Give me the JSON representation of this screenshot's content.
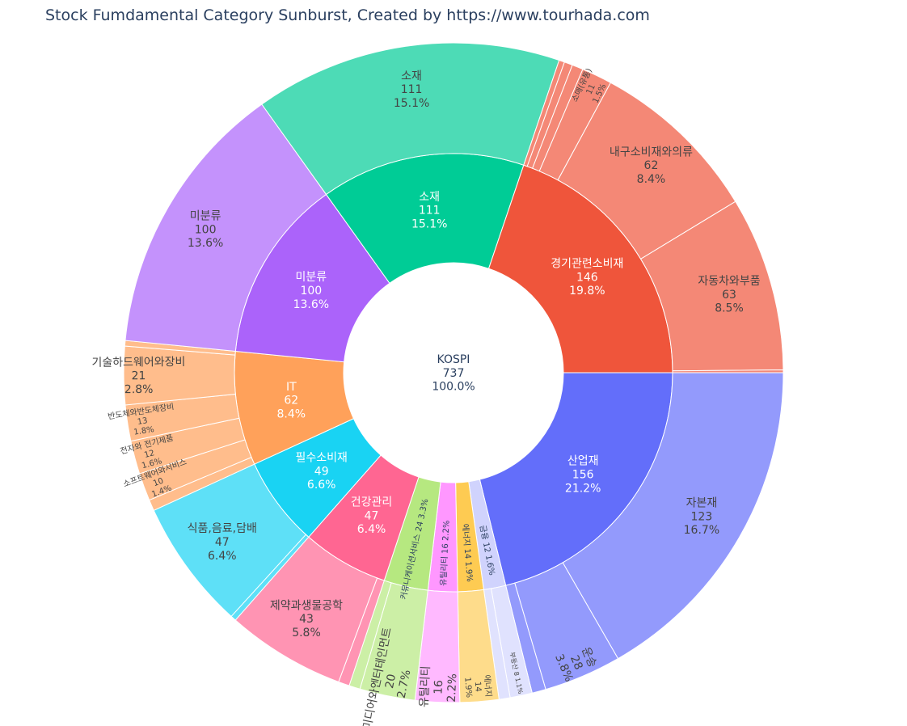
{
  "title": "Stock Fumdamental Category Sunburst, Created by https://www.tourhada.com",
  "chart_data": {
    "type": "sunburst",
    "title": "Stock Fumdamental Category Sunburst, Created by https://www.tourhada.com",
    "root": {
      "label": "KOSPI",
      "value": 737,
      "percent": "100.0%"
    },
    "sectors": [
      {
        "label": "산업재",
        "value": 156,
        "percent": "21.2%",
        "color": "#636efa",
        "children": [
          {
            "label": "자본재",
            "value": 123,
            "percent": "16.7%",
            "color": "#939afc"
          },
          {
            "label": "운송",
            "value": 28,
            "percent": "3.8%",
            "color": "#939afc"
          },
          {
            "label": "",
            "value": 5,
            "percent": "",
            "color": "#939afc"
          }
        ]
      },
      {
        "label": "금융",
        "value": 12,
        "percent": "1.6%",
        "color": "#d0d3fd",
        "children": [
          {
            "label": "부동산",
            "value": 8,
            "percent": "1.1%",
            "color": "#e0e2fe"
          },
          {
            "label": "",
            "value": 4,
            "percent": "",
            "color": "#e0e2fe"
          }
        ]
      },
      {
        "label": "에너지",
        "value": 14,
        "percent": "1.9%",
        "color": "#fecb52",
        "children": [
          {
            "label": "에너지",
            "value": 14,
            "percent": "1.9%",
            "color": "#fedc8b"
          }
        ]
      },
      {
        "label": "유틸리티",
        "value": 16,
        "percent": "2.2%",
        "color": "#ff97ff",
        "children": [
          {
            "label": "유틸리티",
            "value": 16,
            "percent": "2.2%",
            "color": "#ffb9ff"
          }
        ]
      },
      {
        "label": "커뮤니케이션서비스",
        "value": 24,
        "percent": "3.3%",
        "color": "#b6e880",
        "children": [
          {
            "label": "미디어와엔터테인먼트",
            "value": 20,
            "percent": "2.7%",
            "color": "#ccefa6"
          },
          {
            "label": "",
            "value": 4,
            "percent": "",
            "color": "#ccefa6"
          }
        ]
      },
      {
        "label": "건강관리",
        "value": 47,
        "percent": "6.4%",
        "color": "#ff6692",
        "children": [
          {
            "label": "",
            "value": 4,
            "percent": "",
            "color": "#ff94b3"
          },
          {
            "label": "제약과생물공학",
            "value": 43,
            "percent": "5.8%",
            "color": "#ff94b3"
          }
        ]
      },
      {
        "label": "필수소비재",
        "value": 49,
        "percent": "6.6%",
        "color": "#19d3f3",
        "children": [
          {
            "label": "",
            "value": 2,
            "percent": "",
            "color": "#5ee0f7"
          },
          {
            "label": "식품,음료,담배",
            "value": 47,
            "percent": "6.4%",
            "color": "#5ee0f7"
          }
        ]
      },
      {
        "label": "IT",
        "value": 62,
        "percent": "8.4%",
        "color": "#ffa15a",
        "children": [
          {
            "label": "",
            "value": 4,
            "percent": "",
            "color": "#ffbd8c"
          },
          {
            "label": "소프트웨어와서비스",
            "value": 10,
            "percent": "1.4%",
            "color": "#ffbd8c"
          },
          {
            "label": "전자와 전기제품",
            "value": 12,
            "percent": "1.6%",
            "color": "#ffbd8c"
          },
          {
            "label": "반도체와반도체장비",
            "value": 13,
            "percent": "1.8%",
            "color": "#ffbd8c"
          },
          {
            "label": "기술하드웨어와장비",
            "value": 21,
            "percent": "2.8%",
            "color": "#ffbd8c"
          },
          {
            "label": "",
            "value": 2,
            "percent": "",
            "color": "#ffbd8c"
          }
        ]
      },
      {
        "label": "미분류",
        "value": 100,
        "percent": "13.6%",
        "color": "#ab63fa",
        "children": [
          {
            "label": "미분류",
            "value": 100,
            "percent": "13.6%",
            "color": "#c492fc"
          }
        ]
      },
      {
        "label": "소재",
        "value": 111,
        "percent": "15.1%",
        "color": "#00cc96",
        "children": [
          {
            "label": "소재",
            "value": 111,
            "percent": "15.1%",
            "color": "#4ddbb6"
          }
        ]
      },
      {
        "label": "경기관련소비재",
        "value": 146,
        "percent": "19.8%",
        "color": "#ef553b",
        "children": [
          {
            "label": "",
            "value": 2,
            "percent": "",
            "color": "#f48876"
          },
          {
            "label": "",
            "value": 3,
            "percent": "",
            "color": "#f48876"
          },
          {
            "label": "",
            "value": 4,
            "percent": "",
            "color": "#f48876"
          },
          {
            "label": "소매(유통)",
            "value": 11,
            "percent": "1.5%",
            "color": "#f48876"
          },
          {
            "label": "내구소비재와의류",
            "value": 62,
            "percent": "8.4%",
            "color": "#f48876"
          },
          {
            "label": "자동차와부품",
            "value": 63,
            "percent": "8.5%",
            "color": "#f48876"
          },
          {
            "label": "",
            "value": 1,
            "percent": "",
            "color": "#f48876"
          }
        ]
      }
    ]
  }
}
